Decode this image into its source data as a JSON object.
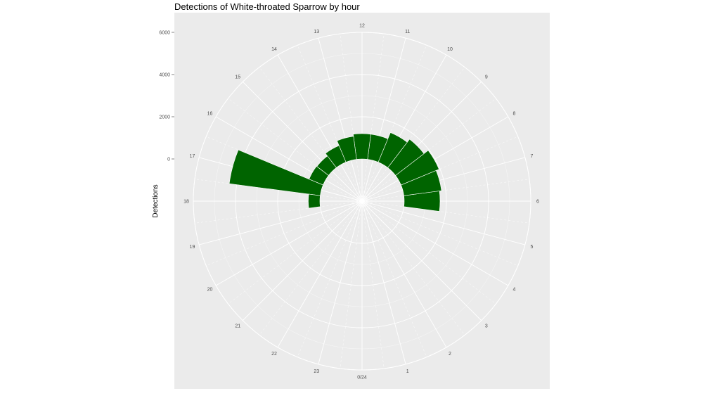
{
  "chart_data": {
    "type": "bar",
    "coord": "polar",
    "title": "Detections of White-throated Sparrow by hour",
    "xlabel": "",
    "ylabel": "Detections",
    "categories": [
      "0/24",
      "1",
      "2",
      "3",
      "4",
      "5",
      "6",
      "7",
      "8",
      "9",
      "10",
      "11",
      "12",
      "13",
      "14",
      "15",
      "16",
      "17",
      "18",
      "19",
      "20",
      "21",
      "22",
      "23"
    ],
    "hour_labels": [
      "0/24",
      "1",
      "2",
      "3",
      "4",
      "5",
      "6",
      "7",
      "8",
      "9",
      "10",
      "11",
      "12",
      "13",
      "14",
      "15",
      "16",
      "17",
      "18",
      "19",
      "20",
      "21",
      "22",
      "23"
    ],
    "radial_ticks": [
      0,
      2000,
      4000,
      6000
    ],
    "radial_tick_labels": [
      "0",
      "2000",
      "4000",
      "6000"
    ],
    "ylim": [
      -2000,
      6000
    ],
    "values": [
      0,
      0,
      0,
      0,
      0,
      0,
      1700,
      1800,
      1950,
      1700,
      1520,
      1200,
      1200,
      1100,
      850,
      700,
      720,
      4350,
      550,
      0,
      0,
      0,
      0,
      0
    ],
    "bar_color": "#006400",
    "panel_color": "#ebebeb",
    "grid_color": "#ffffff",
    "grid": true,
    "legend": "none"
  }
}
